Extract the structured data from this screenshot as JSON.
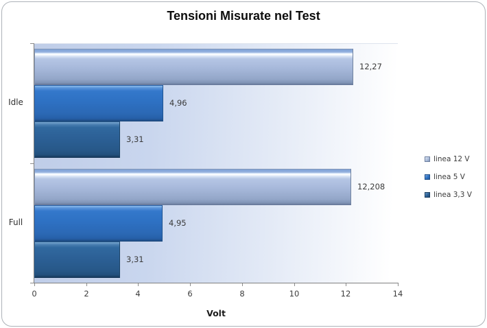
{
  "window": {
    "background_color": "#ffffff",
    "frame_border_color": "#aeb3b9"
  },
  "title": "Tensioni Misurate nel Test",
  "chart_data": {
    "type": "bar",
    "orientation": "horizontal",
    "title": "Tensioni Misurate nel Test",
    "categories": [
      "Idle",
      "Full"
    ],
    "series": [
      {
        "name": "linea 12 V",
        "color": "#a6b8da",
        "values": [
          12.27,
          12.208
        ],
        "value_labels": [
          "12,27",
          "12,208"
        ]
      },
      {
        "name": "linea 5 V",
        "color": "#2e71c3",
        "values": [
          4.96,
          4.95
        ],
        "value_labels": [
          "4,96",
          "4,95"
        ]
      },
      {
        "name": "linea 3,3 V",
        "color": "#2c6096",
        "values": [
          3.31,
          3.31
        ],
        "value_labels": [
          "3,31",
          "3,31"
        ]
      }
    ],
    "xlabel": "Volt",
    "xlim": [
      0,
      14
    ],
    "xticks": [
      0,
      2,
      4,
      6,
      8,
      10,
      12,
      14
    ],
    "grid": false,
    "legend_position": "right",
    "plot_background_gradient": [
      "#bfcde8",
      "#ffffff"
    ],
    "axis_color": "#7f7f7f",
    "text_color": "#3a3a3a"
  }
}
